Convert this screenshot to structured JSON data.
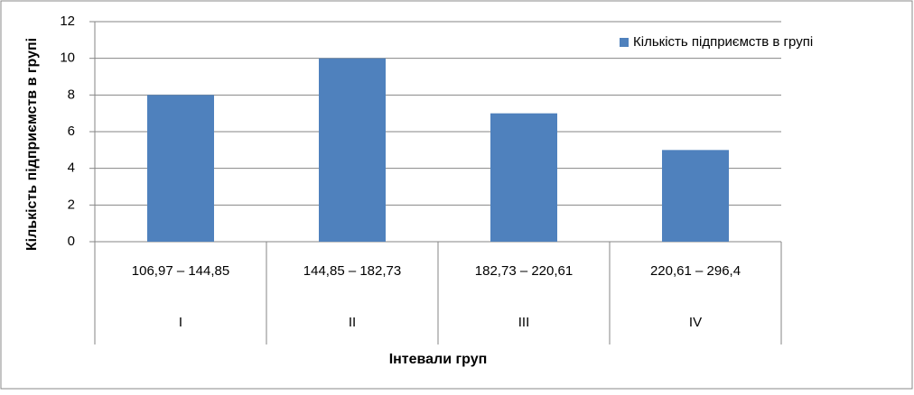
{
  "chart_data": {
    "type": "bar",
    "x_label": "Інтевали груп",
    "y_label": "Кількість підприємств в групі",
    "categories": [
      "106,97 – 144,85",
      "144,85 – 182,73",
      "182,73 – 220,61",
      "220,61 – 296,4"
    ],
    "groups": [
      "I",
      "II",
      "III",
      "IV"
    ],
    "series": [
      {
        "name": "Кількість підприємств в групі",
        "color": "#4f81bd",
        "values": [
          8,
          10,
          7,
          5
        ]
      }
    ],
    "ylim": [
      0,
      12
    ],
    "yticks": [
      0,
      2,
      4,
      6,
      8,
      10,
      12
    ],
    "grid": true,
    "legend": "top-right"
  }
}
